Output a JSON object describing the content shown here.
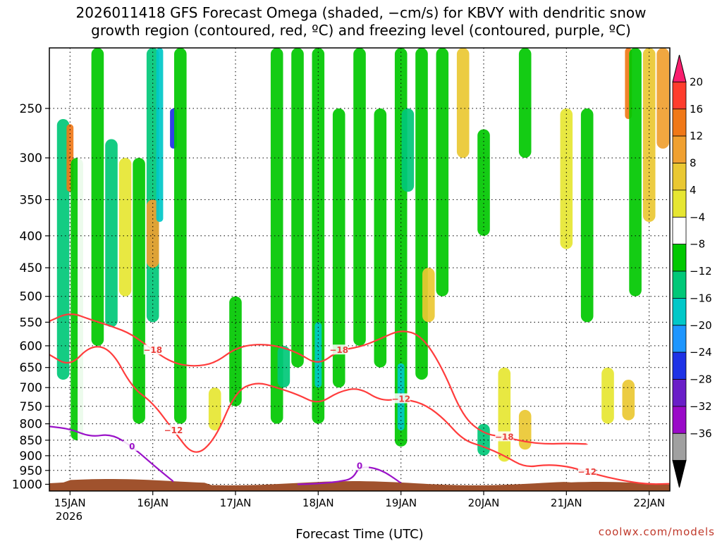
{
  "chart_data": {
    "type": "heatmap",
    "title_lines": [
      "2026011418 GFS Forecast Omega (shaded, −cm/s) for KBVY with dendritic snow",
      "growth region (contoured, red, ºC) and freezing level (contoured, purple, ºC)"
    ],
    "xlabel": "Forecast Time (UTC)",
    "ylabel": "",
    "x_ticks": [
      "15JAN",
      "16JAN",
      "17JAN",
      "18JAN",
      "19JAN",
      "20JAN",
      "21JAN",
      "22JAN"
    ],
    "x_year_label": "2026",
    "x_range": [
      "2026-01-14T18",
      "2026-01-22T06"
    ],
    "y_ticks": [
      250,
      300,
      350,
      400,
      450,
      500,
      550,
      600,
      650,
      700,
      750,
      800,
      850,
      900,
      950,
      1000
    ],
    "y_range": [
      200,
      1025
    ],
    "y_scale": "log-pressure (inverted)",
    "grid": true,
    "colorbar": {
      "labels": [
        20,
        16,
        12,
        8,
        4,
        -4,
        -8,
        -12,
        -16,
        -20,
        -24,
        -28,
        -32,
        -36
      ],
      "colors": [
        "#fa1e6e",
        "#ff3c2c",
        "#f07818",
        "#f0a030",
        "#eac832",
        "#e6e632",
        "#ffffff",
        "#00c800",
        "#00c878",
        "#00c8c8",
        "#1e96ff",
        "#1e32e6",
        "#6a1ec8",
        "#9a0ac8",
        "#a0a0a0",
        "#000000"
      ]
    },
    "series": [
      {
        "name": "-12",
        "color": "#ff3c3c",
        "points": [
          [
            "2026-01-14T18",
            620
          ],
          [
            "2026-01-15T00",
            648
          ],
          [
            "2026-01-15T06",
            598
          ],
          [
            "2026-01-15T12",
            608
          ],
          [
            "2026-01-15T18",
            700
          ],
          [
            "2026-01-16T00",
            740
          ],
          [
            "2026-01-16T06",
            820
          ],
          [
            "2026-01-16T12",
            905
          ],
          [
            "2026-01-16T18",
            850
          ],
          [
            "2026-01-17T00",
            710
          ],
          [
            "2026-01-17T06",
            685
          ],
          [
            "2026-01-17T12",
            700
          ],
          [
            "2026-01-17T18",
            718
          ],
          [
            "2026-01-18T00",
            745
          ],
          [
            "2026-01-18T06",
            710
          ],
          [
            "2026-01-18T12",
            700
          ],
          [
            "2026-01-18T18",
            735
          ],
          [
            "2026-01-19T00",
            730
          ],
          [
            "2026-01-19T06",
            740
          ],
          [
            "2026-01-19T12",
            780
          ],
          [
            "2026-01-19T18",
            850
          ],
          [
            "2026-01-20T00",
            870
          ],
          [
            "2026-01-20T06",
            900
          ],
          [
            "2026-01-20T12",
            940
          ],
          [
            "2026-01-20T18",
            930
          ],
          [
            "2026-01-21T00",
            935
          ],
          [
            "2026-01-21T06",
            955
          ],
          [
            "2026-01-21T12",
            975
          ],
          [
            "2026-01-21T18",
            990
          ],
          [
            "2026-01-22T00",
            1000
          ],
          [
            "2026-01-22T06",
            998
          ]
        ]
      },
      {
        "name": "-18",
        "color": "#ff3c3c",
        "points": [
          [
            "2026-01-14T18",
            548
          ],
          [
            "2026-01-15T00",
            530
          ],
          [
            "2026-01-15T06",
            545
          ],
          [
            "2026-01-15T12",
            558
          ],
          [
            "2026-01-15T18",
            575
          ],
          [
            "2026-01-16T00",
            610
          ],
          [
            "2026-01-16T06",
            640
          ],
          [
            "2026-01-16T12",
            648
          ],
          [
            "2026-01-16T18",
            640
          ],
          [
            "2026-01-17T00",
            605
          ],
          [
            "2026-01-17T06",
            596
          ],
          [
            "2026-01-17T12",
            600
          ],
          [
            "2026-01-17T18",
            615
          ],
          [
            "2026-01-18T00",
            645
          ],
          [
            "2026-01-18T06",
            610
          ],
          [
            "2026-01-18T12",
            603
          ],
          [
            "2026-01-18T18",
            585
          ],
          [
            "2026-01-19T00",
            565
          ],
          [
            "2026-01-19T06",
            578
          ],
          [
            "2026-01-19T12",
            650
          ],
          [
            "2026-01-19T18",
            780
          ],
          [
            "2026-01-20T00",
            830
          ],
          [
            "2026-01-20T06",
            840
          ],
          [
            "2026-01-20T12",
            855
          ],
          [
            "2026-01-20T18",
            862
          ],
          [
            "2026-01-21T00",
            860
          ],
          [
            "2026-01-21T06",
            862
          ]
        ]
      },
      {
        "name": "0",
        "color": "#9a12c8",
        "points": [
          [
            "2026-01-14T18",
            808
          ],
          [
            "2026-01-15T00",
            815
          ],
          [
            "2026-01-15T06",
            840
          ],
          [
            "2026-01-15T12",
            830
          ],
          [
            "2026-01-15T18",
            870
          ],
          [
            "2026-01-16T00",
            930
          ],
          [
            "2026-01-16T06",
            990
          ]
        ]
      },
      {
        "name": "0",
        "color": "#9a12c8",
        "points": [
          [
            "2026-01-17T18",
            1000
          ],
          [
            "2026-01-18T00",
            998
          ],
          [
            "2026-01-18T06",
            990
          ],
          [
            "2026-01-18T10",
            980
          ],
          [
            "2026-01-18T12",
            935
          ],
          [
            "2026-01-18T18",
            945
          ],
          [
            "2026-01-19T00",
            995
          ]
        ]
      }
    ],
    "omega_features": [
      {
        "t": "2026-01-14T22",
        "p_top": 260,
        "p_bot": 680,
        "v": -12
      },
      {
        "t": "2026-01-15T00",
        "p_top": 265,
        "p_bot": 340,
        "v": 16
      },
      {
        "t": "2026-01-15T02",
        "p_top": 300,
        "p_bot": 850,
        "v": -8
      },
      {
        "t": "2026-01-15T04",
        "p_top": 220,
        "p_bot": 900,
        "v": -4
      },
      {
        "t": "2026-01-15T08",
        "p_top": 200,
        "p_bot": 600,
        "v": -8
      },
      {
        "t": "2026-01-15T12",
        "p_top": 280,
        "p_bot": 560,
        "v": -12
      },
      {
        "t": "2026-01-15T16",
        "p_top": 300,
        "p_bot": 500,
        "v": 4
      },
      {
        "t": "2026-01-15T20",
        "p_top": 300,
        "p_bot": 800,
        "v": -8
      },
      {
        "t": "2026-01-16T00",
        "p_top": 200,
        "p_bot": 550,
        "v": -12
      },
      {
        "t": "2026-01-16T00",
        "p_top": 350,
        "p_bot": 450,
        "v": 12
      },
      {
        "t": "2026-01-16T02",
        "p_top": 200,
        "p_bot": 380,
        "v": -16
      },
      {
        "t": "2026-01-16T06",
        "p_top": 250,
        "p_bot": 290,
        "v": -24
      },
      {
        "t": "2026-01-16T08",
        "p_top": 200,
        "p_bot": 800,
        "v": -8
      },
      {
        "t": "2026-01-16T12",
        "p_top": 450,
        "p_bot": 800,
        "v": -4
      },
      {
        "t": "2026-01-16T18",
        "p_top": 700,
        "p_bot": 820,
        "v": 4
      },
      {
        "t": "2026-01-17T00",
        "p_top": 500,
        "p_bot": 750,
        "v": -8
      },
      {
        "t": "2026-01-17T06",
        "p_top": 200,
        "p_bot": 650,
        "v": -4
      },
      {
        "t": "2026-01-17T12",
        "p_top": 200,
        "p_bot": 800,
        "v": -8
      },
      {
        "t": "2026-01-17T14",
        "p_top": 600,
        "p_bot": 700,
        "v": -12
      },
      {
        "t": "2026-01-17T18",
        "p_top": 200,
        "p_bot": 650,
        "v": -8
      },
      {
        "t": "2026-01-18T00",
        "p_top": 200,
        "p_bot": 800,
        "v": -8
      },
      {
        "t": "2026-01-18T00",
        "p_top": 550,
        "p_bot": 700,
        "v": -16
      },
      {
        "t": "2026-01-18T06",
        "p_top": 250,
        "p_bot": 700,
        "v": -8
      },
      {
        "t": "2026-01-18T12",
        "p_top": 200,
        "p_bot": 600,
        "v": -8
      },
      {
        "t": "2026-01-18T18",
        "p_top": 250,
        "p_bot": 650,
        "v": -8
      },
      {
        "t": "2026-01-19T00",
        "p_top": 200,
        "p_bot": 870,
        "v": -8
      },
      {
        "t": "2026-01-19T00",
        "p_top": 640,
        "p_bot": 820,
        "v": -16
      },
      {
        "t": "2026-01-19T02",
        "p_top": 250,
        "p_bot": 340,
        "v": -12
      },
      {
        "t": "2026-01-19T06",
        "p_top": 200,
        "p_bot": 680,
        "v": -8
      },
      {
        "t": "2026-01-19T08",
        "p_top": 450,
        "p_bot": 550,
        "v": 8
      },
      {
        "t": "2026-01-19T12",
        "p_top": 200,
        "p_bot": 500,
        "v": -8
      },
      {
        "t": "2026-01-19T18",
        "p_top": 200,
        "p_bot": 300,
        "v": 8
      },
      {
        "t": "2026-01-20T00",
        "p_top": 270,
        "p_bot": 400,
        "v": -8
      },
      {
        "t": "2026-01-20T00",
        "p_top": 800,
        "p_bot": 900,
        "v": -12
      },
      {
        "t": "2026-01-20T06",
        "p_top": 650,
        "p_bot": 920,
        "v": 4
      },
      {
        "t": "2026-01-20T12",
        "p_top": 760,
        "p_bot": 880,
        "v": 8
      },
      {
        "t": "2026-01-20T12",
        "p_top": 200,
        "p_bot": 300,
        "v": -8
      },
      {
        "t": "2026-01-21T00",
        "p_top": 250,
        "p_bot": 420,
        "v": 4
      },
      {
        "t": "2026-01-21T06",
        "p_top": 250,
        "p_bot": 550,
        "v": -8
      },
      {
        "t": "2026-01-21T12",
        "p_top": 650,
        "p_bot": 800,
        "v": 4
      },
      {
        "t": "2026-01-21T18",
        "p_top": 680,
        "p_bot": 790,
        "v": 8
      },
      {
        "t": "2026-01-21T18",
        "p_top": 200,
        "p_bot": 260,
        "v": 16
      },
      {
        "t": "2026-01-21T20",
        "p_top": 200,
        "p_bot": 500,
        "v": -8
      },
      {
        "t": "2026-01-22T00",
        "p_top": 200,
        "p_bot": 380,
        "v": 8
      },
      {
        "t": "2026-01-22T04",
        "p_top": 200,
        "p_bot": 290,
        "v": 12
      }
    ],
    "annotations": [
      "coolwx.com/models"
    ]
  }
}
